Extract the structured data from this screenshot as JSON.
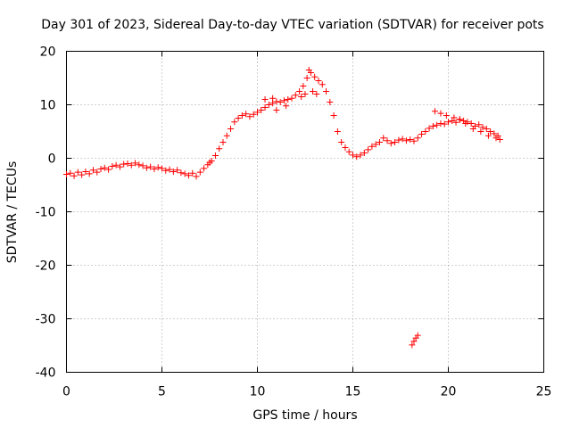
{
  "chart_data": {
    "type": "scatter",
    "title": "Day 301 of 2023, Sidereal Day-to-day VTEC variation (SDTVAR) for receiver pots",
    "xlabel": "GPS time / hours",
    "ylabel": "SDTVAR / TECUs",
    "xlim": [
      0,
      25
    ],
    "ylim": [
      -40,
      20
    ],
    "xticks": [
      0,
      5,
      10,
      15,
      20,
      25
    ],
    "yticks": [
      -40,
      -30,
      -20,
      -10,
      0,
      10,
      20
    ],
    "grid": true,
    "marker": "+",
    "color": "#ff0000",
    "series": [
      {
        "name": "pots",
        "points": [
          [
            0.0,
            -3.0
          ],
          [
            0.2,
            -2.8
          ],
          [
            0.4,
            -3.3
          ],
          [
            0.6,
            -2.6
          ],
          [
            0.8,
            -3.1
          ],
          [
            1.0,
            -2.5
          ],
          [
            1.2,
            -2.9
          ],
          [
            1.4,
            -2.2
          ],
          [
            1.6,
            -2.6
          ],
          [
            1.8,
            -2.0
          ],
          [
            2.0,
            -1.8
          ],
          [
            2.2,
            -2.1
          ],
          [
            2.4,
            -1.5
          ],
          [
            2.6,
            -1.3
          ],
          [
            2.8,
            -1.6
          ],
          [
            3.0,
            -1.1
          ],
          [
            3.2,
            -1.0
          ],
          [
            3.4,
            -1.3
          ],
          [
            3.6,
            -0.9
          ],
          [
            3.8,
            -1.2
          ],
          [
            4.0,
            -1.4
          ],
          [
            4.2,
            -1.8
          ],
          [
            4.4,
            -1.6
          ],
          [
            4.6,
            -2.0
          ],
          [
            4.8,
            -1.7
          ],
          [
            5.0,
            -1.9
          ],
          [
            5.2,
            -2.3
          ],
          [
            5.4,
            -2.1
          ],
          [
            5.6,
            -2.5
          ],
          [
            5.8,
            -2.2
          ],
          [
            6.0,
            -2.7
          ],
          [
            6.2,
            -2.9
          ],
          [
            6.4,
            -3.2
          ],
          [
            6.6,
            -2.8
          ],
          [
            6.8,
            -3.4
          ],
          [
            7.0,
            -2.6
          ],
          [
            7.2,
            -1.9
          ],
          [
            7.4,
            -1.2
          ],
          [
            7.5,
            -0.8
          ],
          [
            7.6,
            -0.5
          ],
          [
            7.8,
            0.5
          ],
          [
            8.0,
            1.8
          ],
          [
            8.2,
            3.0
          ],
          [
            8.4,
            4.2
          ],
          [
            8.6,
            5.5
          ],
          [
            8.8,
            6.8
          ],
          [
            9.0,
            7.5
          ],
          [
            9.2,
            8.0
          ],
          [
            9.4,
            8.3
          ],
          [
            9.6,
            7.8
          ],
          [
            9.8,
            8.2
          ],
          [
            10.0,
            8.6
          ],
          [
            10.2,
            9.0
          ],
          [
            10.4,
            9.5
          ],
          [
            10.6,
            10.0
          ],
          [
            10.8,
            10.3
          ],
          [
            11.0,
            10.6
          ],
          [
            11.2,
            10.5
          ],
          [
            11.4,
            10.8
          ],
          [
            11.6,
            11.0
          ],
          [
            11.8,
            11.2
          ],
          [
            12.0,
            11.8
          ],
          [
            12.2,
            12.5
          ],
          [
            12.4,
            13.5
          ],
          [
            12.6,
            15.0
          ],
          [
            12.7,
            16.5
          ],
          [
            12.8,
            16.0
          ],
          [
            13.0,
            15.2
          ],
          [
            13.2,
            14.5
          ],
          [
            13.4,
            13.8
          ],
          [
            13.6,
            12.5
          ],
          [
            13.8,
            10.5
          ],
          [
            14.0,
            8.0
          ],
          [
            14.2,
            5.0
          ],
          [
            14.4,
            3.0
          ],
          [
            14.6,
            2.0
          ],
          [
            14.8,
            1.2
          ],
          [
            15.0,
            0.6
          ],
          [
            15.2,
            0.3
          ],
          [
            15.4,
            0.6
          ],
          [
            15.6,
            1.0
          ],
          [
            15.8,
            1.6
          ],
          [
            16.0,
            2.2
          ],
          [
            16.2,
            2.6
          ],
          [
            16.4,
            3.0
          ],
          [
            16.6,
            3.8
          ],
          [
            16.8,
            3.3
          ],
          [
            17.0,
            2.8
          ],
          [
            17.2,
            3.0
          ],
          [
            17.4,
            3.4
          ],
          [
            17.6,
            3.6
          ],
          [
            17.8,
            3.3
          ],
          [
            18.0,
            3.5
          ],
          [
            18.2,
            3.2
          ],
          [
            18.4,
            3.8
          ],
          [
            18.6,
            4.5
          ],
          [
            18.8,
            5.0
          ],
          [
            19.0,
            5.6
          ],
          [
            19.2,
            6.0
          ],
          [
            19.4,
            6.2
          ],
          [
            19.6,
            6.5
          ],
          [
            19.8,
            6.4
          ],
          [
            20.0,
            6.8
          ],
          [
            20.2,
            7.0
          ],
          [
            20.4,
            6.7
          ],
          [
            20.6,
            7.2
          ],
          [
            20.8,
            7.0
          ],
          [
            21.0,
            6.8
          ],
          [
            21.2,
            6.5
          ],
          [
            21.4,
            6.0
          ],
          [
            21.6,
            6.3
          ],
          [
            21.8,
            5.8
          ],
          [
            22.0,
            5.5
          ],
          [
            22.2,
            5.0
          ],
          [
            22.4,
            4.6
          ],
          [
            22.6,
            4.2
          ],
          [
            22.7,
            3.5
          ],
          [
            18.1,
            -34.9
          ],
          [
            18.2,
            -34.2
          ],
          [
            18.3,
            -33.6
          ],
          [
            18.4,
            -33.1
          ],
          [
            12.3,
            11.5
          ],
          [
            12.5,
            12.0
          ],
          [
            12.9,
            12.5
          ],
          [
            13.1,
            12.0
          ],
          [
            10.4,
            11.0
          ],
          [
            10.8,
            11.2
          ],
          [
            11.0,
            9.0
          ],
          [
            11.5,
            9.8
          ],
          [
            19.3,
            8.8
          ],
          [
            19.6,
            8.4
          ],
          [
            19.9,
            8.0
          ],
          [
            20.3,
            7.6
          ],
          [
            20.6,
            7.3
          ],
          [
            20.9,
            6.5
          ],
          [
            21.3,
            5.5
          ],
          [
            21.7,
            5.0
          ],
          [
            22.1,
            4.2
          ],
          [
            22.5,
            3.8
          ]
        ]
      }
    ]
  }
}
